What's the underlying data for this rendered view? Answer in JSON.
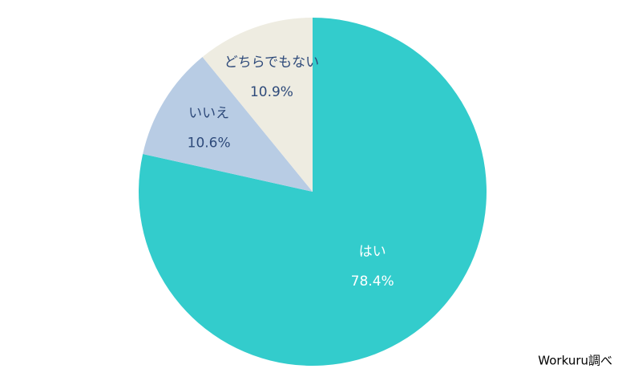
{
  "chart_data": {
    "type": "pie",
    "categories": [
      "はい",
      "いいえ",
      "どちらでもない"
    ],
    "values": [
      78.4,
      10.6,
      10.9
    ],
    "value_labels": [
      "78.4%",
      "10.6%",
      "10.9%"
    ],
    "colors": [
      "#33cccc",
      "#b8cce4",
      "#eeece1"
    ],
    "label_colors": [
      "#ffffff",
      "#2e4a7a",
      "#2e4a7a"
    ],
    "source": "Workuru調べ"
  }
}
